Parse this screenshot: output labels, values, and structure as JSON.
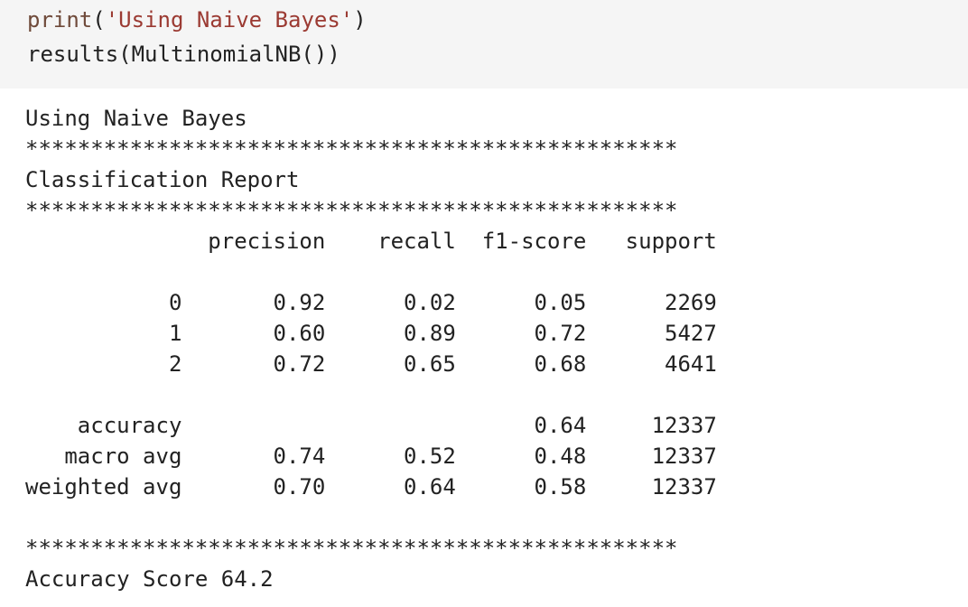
{
  "input_cell": {
    "lines": [
      {
        "fn": "print",
        "open": "(",
        "str": "'Using Naive Bayes'",
        "close": ")"
      },
      {
        "text": "results(MultinomialNB())"
      }
    ]
  },
  "output": {
    "header_text": "Using Naive Bayes",
    "separator": "**************************************************",
    "report_title": "Classification Report",
    "columns": "              precision    recall  f1-score   support",
    "rows": [
      "           0       0.92      0.02      0.05      2269",
      "           1       0.60      0.89      0.72      5427",
      "           2       0.72      0.65      0.68      4641",
      "    accuracy                           0.64     12337",
      "   macro avg       0.74      0.52      0.48     12337",
      "weighted avg       0.70      0.64      0.58     12337"
    ],
    "accuracy_score": "Accuracy Score 64.2"
  },
  "colors": {
    "input_background": "#f5f5f5",
    "function_color": "#6f4a3a",
    "string_color": "#9b3a32",
    "text_color": "#222222"
  }
}
